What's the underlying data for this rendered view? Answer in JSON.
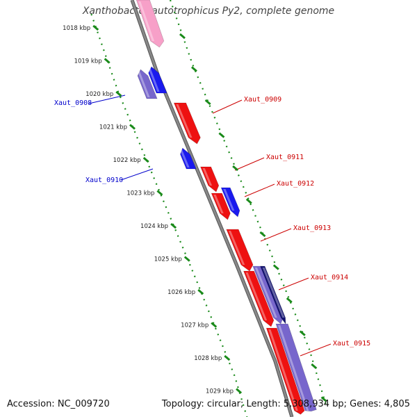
{
  "title": "Xanthobacter autotrophicus Py2, complete genome",
  "footer": {
    "accession": "Accession: NC_009720",
    "topology": "Topology: circular; Length: 5,308,934 bp; Genes: 4,805"
  },
  "kbp_ticks": [
    "1018 kbp",
    "1019 kbp",
    "1020 kbp",
    "1021 kbp",
    "1022 kbp",
    "1023 kbp",
    "1024 kbp",
    "1025 kbp",
    "1026 kbp",
    "1027 kbp",
    "1028 kbp",
    "1029 kbp"
  ],
  "colors": {
    "forward_gene": "#ee1111",
    "reverse_gene": "#1a1aee",
    "reverse_faded": "#7766cc",
    "dark_gene": "#101070",
    "pink_gene": "#f7a0c8",
    "backbone": "#888888",
    "tick_green": "#1a8a1a",
    "label_red": "#cc0000",
    "label_blue": "#0000cc"
  },
  "gene_labels": [
    {
      "name": "Xaut_0908",
      "strand": "reverse"
    },
    {
      "name": "Xaut_0909",
      "strand": "forward"
    },
    {
      "name": "Xaut_0910",
      "strand": "reverse"
    },
    {
      "name": "Xaut_0911",
      "strand": "forward"
    },
    {
      "name": "Xaut_0912",
      "strand": "forward"
    },
    {
      "name": "Xaut_0913",
      "strand": "forward"
    },
    {
      "name": "Xaut_0914",
      "strand": "forward"
    },
    {
      "name": "Xaut_0915",
      "strand": "forward"
    }
  ]
}
